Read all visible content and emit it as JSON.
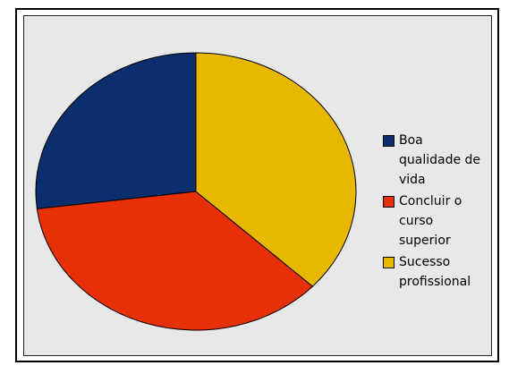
{
  "chart_data": {
    "type": "pie",
    "categories": [
      "Boa qualidade de vida",
      "Concluir o curso superior",
      "Sucesso profissional"
    ],
    "values": [
      27,
      36,
      37
    ],
    "colors": [
      "#0a2e6e",
      "#e83008",
      "#e8b800"
    ],
    "start": "top",
    "direction": "counterclockwise",
    "legend": "right"
  }
}
